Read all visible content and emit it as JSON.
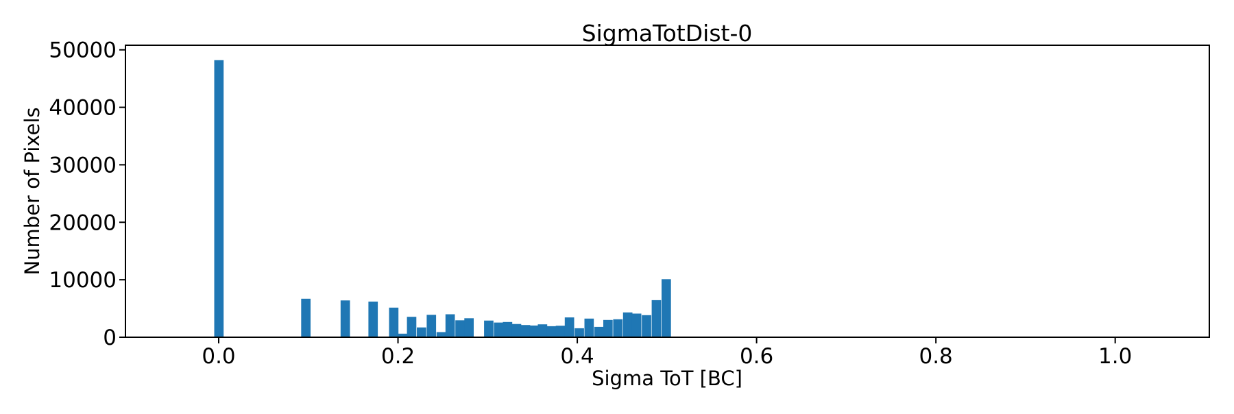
{
  "chart_data": {
    "type": "bar",
    "title": "SigmaTotDist-0",
    "xlabel": "Sigma ToT [BC]",
    "ylabel": "Number of Pixels",
    "bar_color": "#1f77b4",
    "axis_color": "#000000",
    "background_color": "#ffffff",
    "xlim": [
      -0.104,
      1.105
    ],
    "ylim": [
      0,
      50800
    ],
    "bin_width": 0.01,
    "grid": false,
    "legend": false,
    "x_ticks": [
      {
        "value": 0.0,
        "label": "0.0"
      },
      {
        "value": 0.2,
        "label": "0.2"
      },
      {
        "value": 0.4,
        "label": "0.4"
      },
      {
        "value": 0.6,
        "label": "0.6"
      },
      {
        "value": 0.8,
        "label": "0.8"
      },
      {
        "value": 1.0,
        "label": "1.0"
      }
    ],
    "y_ticks": [
      {
        "value": 0,
        "label": "0"
      },
      {
        "value": 10000,
        "label": "10000"
      },
      {
        "value": 20000,
        "label": "20000"
      },
      {
        "value": 30000,
        "label": "30000"
      },
      {
        "value": 40000,
        "label": "40000"
      },
      {
        "value": 50000,
        "label": "50000"
      }
    ],
    "bars": [
      {
        "x": 0.0,
        "count": 48200
      },
      {
        "x": 0.097,
        "count": 6700
      },
      {
        "x": 0.141,
        "count": 6400
      },
      {
        "x": 0.172,
        "count": 6200
      },
      {
        "x": 0.195,
        "count": 5150
      },
      {
        "x": 0.205,
        "count": 620
      },
      {
        "x": 0.215,
        "count": 3550
      },
      {
        "x": 0.226,
        "count": 1700
      },
      {
        "x": 0.237,
        "count": 3900
      },
      {
        "x": 0.248,
        "count": 900
      },
      {
        "x": 0.258,
        "count": 4000
      },
      {
        "x": 0.269,
        "count": 2950
      },
      {
        "x": 0.279,
        "count": 3300
      },
      {
        "x": 0.301,
        "count": 2900
      },
      {
        "x": 0.312,
        "count": 2550
      },
      {
        "x": 0.322,
        "count": 2650
      },
      {
        "x": 0.332,
        "count": 2300
      },
      {
        "x": 0.342,
        "count": 2120
      },
      {
        "x": 0.352,
        "count": 2040
      },
      {
        "x": 0.361,
        "count": 2240
      },
      {
        "x": 0.371,
        "count": 1920
      },
      {
        "x": 0.381,
        "count": 2000
      },
      {
        "x": 0.391,
        "count": 3450
      },
      {
        "x": 0.402,
        "count": 1560
      },
      {
        "x": 0.413,
        "count": 3240
      },
      {
        "x": 0.424,
        "count": 1800
      },
      {
        "x": 0.434,
        "count": 3000
      },
      {
        "x": 0.445,
        "count": 3120
      },
      {
        "x": 0.456,
        "count": 4320
      },
      {
        "x": 0.466,
        "count": 4110
      },
      {
        "x": 0.477,
        "count": 3840
      },
      {
        "x": 0.488,
        "count": 6450
      },
      {
        "x": 0.499,
        "count": 10100
      }
    ]
  }
}
